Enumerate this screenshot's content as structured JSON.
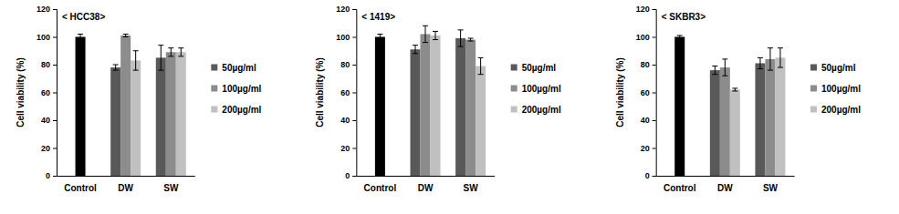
{
  "chart_data": [
    {
      "type": "bar",
      "title": "< HCC38>",
      "y_label": "Cell viability (%)",
      "categories": [
        "Control",
        "DW",
        "SW"
      ],
      "ylim": [
        0,
        120
      ],
      "yticks": [
        0,
        20,
        40,
        60,
        80,
        100,
        120
      ],
      "grid": false,
      "legend": "right",
      "series": [
        {
          "color": "#000000",
          "values": [
            100,
            null,
            null
          ],
          "error": [
            2,
            null,
            null
          ]
        },
        {
          "name": "50µg/ml",
          "color": "#595959",
          "values": [
            null,
            78,
            85
          ],
          "error": [
            null,
            2,
            9
          ]
        },
        {
          "name": "100µg/ml",
          "color": "#8c8c8c",
          "values": [
            null,
            101,
            89
          ],
          "error": [
            null,
            1,
            3
          ]
        },
        {
          "name": "200µg/ml",
          "color": "#c0c0c0",
          "values": [
            null,
            83,
            89
          ],
          "error": [
            null,
            7,
            3
          ]
        }
      ]
    },
    {
      "type": "bar",
      "title": "< 1419>",
      "y_label": "Cell viability (%)",
      "categories": [
        "Control",
        "DW",
        "SW"
      ],
      "ylim": [
        0,
        120
      ],
      "yticks": [
        0,
        20,
        40,
        60,
        80,
        100,
        120
      ],
      "grid": false,
      "legend": "right",
      "series": [
        {
          "color": "#000000",
          "values": [
            100,
            null,
            null
          ],
          "error": [
            2,
            null,
            null
          ]
        },
        {
          "name": "50µg/ml",
          "color": "#595959",
          "values": [
            null,
            91,
            99
          ],
          "error": [
            null,
            3,
            6
          ]
        },
        {
          "name": "100µg/ml",
          "color": "#8c8c8c",
          "values": [
            null,
            102,
            98
          ],
          "error": [
            null,
            6,
            1
          ]
        },
        {
          "name": "200µg/ml",
          "color": "#c0c0c0",
          "values": [
            null,
            101,
            79
          ],
          "error": [
            null,
            3,
            6
          ]
        }
      ]
    },
    {
      "type": "bar",
      "title": "< SKBR3>",
      "y_label": "Cell viability (%)",
      "categories": [
        "Control",
        "DW",
        "SW"
      ],
      "ylim": [
        0,
        120
      ],
      "yticks": [
        0,
        20,
        40,
        60,
        80,
        100,
        120
      ],
      "grid": false,
      "legend": "right",
      "series": [
        {
          "color": "#000000",
          "values": [
            100,
            null,
            null
          ],
          "error": [
            1,
            null,
            null
          ]
        },
        {
          "name": "50µg/ml",
          "color": "#595959",
          "values": [
            null,
            76,
            81
          ],
          "error": [
            null,
            3,
            4
          ]
        },
        {
          "name": "100µg/ml",
          "color": "#8c8c8c",
          "values": [
            null,
            78,
            84
          ],
          "error": [
            null,
            6,
            8
          ]
        },
        {
          "name": "200µg/ml",
          "color": "#c0c0c0",
          "values": [
            null,
            62,
            85
          ],
          "error": [
            null,
            1,
            7
          ]
        }
      ]
    }
  ]
}
